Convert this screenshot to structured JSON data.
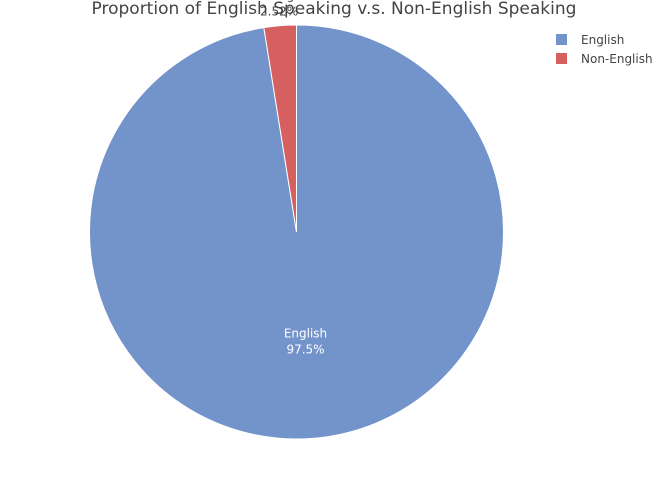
{
  "chart_data": {
    "type": "pie",
    "title": "Proportion of English Speaking v.s. Non-English Speaking",
    "categories": [
      "English",
      "Non-English"
    ],
    "values": [
      97.48,
      2.52
    ],
    "value_labels": [
      "97.5%",
      "2.52%"
    ],
    "colors": [
      "#7393CB",
      "#D65F5F"
    ],
    "label_colors": [
      "#ffffff",
      "#444444"
    ],
    "legend": "top-right"
  }
}
